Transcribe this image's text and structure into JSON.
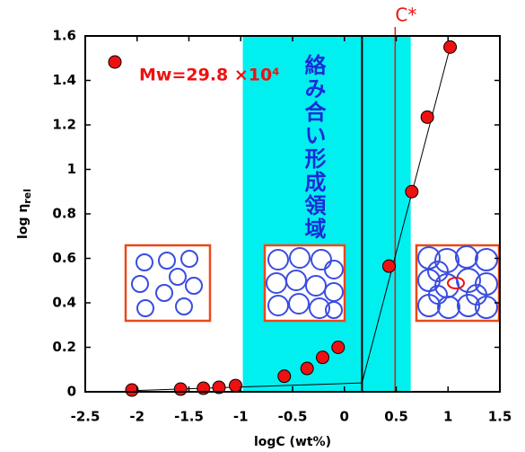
{
  "chart_data": {
    "type": "scatter",
    "x_label": "logC (wt%)",
    "y_label": "log η",
    "y_label_subscript": "rel",
    "xlim": [
      -2.5,
      1.5
    ],
    "xticks": [
      -2.5,
      -2,
      -1.5,
      -1,
      -0.5,
      0,
      0.5,
      1,
      1.5
    ],
    "ylim": [
      0,
      1.6
    ],
    "yticks": [
      0,
      0.2,
      0.4,
      0.6,
      0.8,
      1,
      1.2,
      1.4,
      1.6
    ],
    "series": [
      {
        "name": "Mw=29.8 ×10⁴",
        "color": "#ee1111",
        "x": [
          -2.05,
          -1.58,
          -1.36,
          -1.21,
          -1.05,
          -0.58,
          -0.36,
          -0.21,
          -0.06,
          0.43,
          0.65,
          0.8,
          1.02
        ],
        "values": [
          0.008,
          0.012,
          0.016,
          0.02,
          0.028,
          0.07,
          0.105,
          0.155,
          0.2,
          0.565,
          0.9,
          1.235,
          1.55
        ]
      }
    ],
    "fit_lines": [
      {
        "x": [
          -2.05,
          0.17
        ],
        "values": [
          0.005,
          0.04
        ]
      },
      {
        "x": [
          0.17,
          1.02
        ],
        "values": [
          0.04,
          1.55
        ]
      }
    ],
    "shaded_region": [
      -0.98,
      0.64
    ],
    "region_label": "絡み合い形成領域",
    "black_vline": 0.17,
    "red_vline": 0.49,
    "red_vline_label": "C*"
  }
}
